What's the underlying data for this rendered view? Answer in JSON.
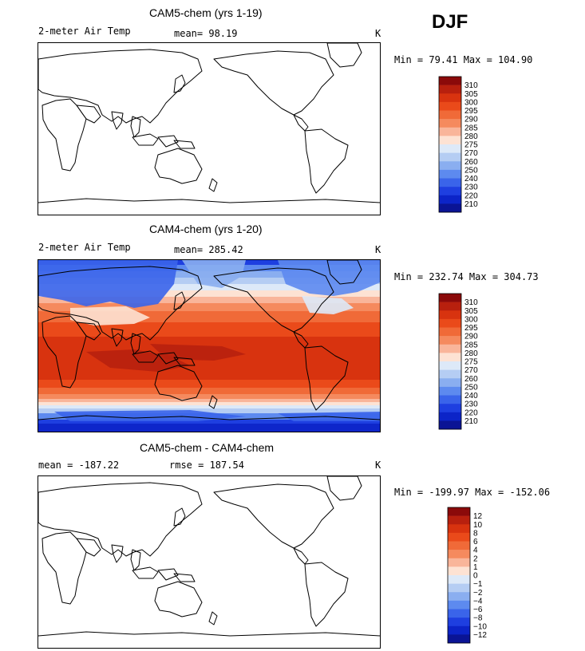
{
  "season": "DJF",
  "panels": [
    {
      "title": "CAM5-chem (yrs 1-19)",
      "left_label": "2-meter Air Temp",
      "center_label": "mean=  98.19",
      "right_label": "K",
      "range_label": "Min =  79.41 Max = 104.90",
      "filled": false
    },
    {
      "title": "CAM4-chem (yrs 1-20)",
      "left_label": "2-meter Air Temp",
      "center_label": "mean= 285.42",
      "right_label": "K",
      "range_label": "Min = 232.74 Max = 304.73",
      "filled": true
    },
    {
      "title": "CAM5-chem - CAM4-chem",
      "left_label": "mean = -187.22",
      "center_label": "rmse = 187.54",
      "right_label": "K",
      "range_label": "Min = -199.97 Max = -152.06",
      "filled": false
    }
  ],
  "colorbars": {
    "temperature": {
      "labels": [
        "310",
        "305",
        "300",
        "295",
        "290",
        "285",
        "280",
        "275",
        "270",
        "260",
        "250",
        "240",
        "230",
        "220",
        "210"
      ],
      "colors": [
        "#8b0a0a",
        "#b8200e",
        "#d8330f",
        "#ea4a1a",
        "#f06a38",
        "#f58a5e",
        "#f9b59a",
        "#fde2d3",
        "#dde9f8",
        "#b5cdf3",
        "#8aaef0",
        "#5d8aef",
        "#3a64ea",
        "#1e3fe0",
        "#0c24c8",
        "#0a1495"
      ]
    },
    "difference": {
      "labels": [
        "12",
        "10",
        "8",
        "6",
        "4",
        "2",
        "1",
        "0",
        "−1",
        "−2",
        "−4",
        "−6",
        "−8",
        "−10",
        "−12"
      ],
      "colors": [
        "#8b0a0a",
        "#b8200e",
        "#d8330f",
        "#ea4a1a",
        "#f06a38",
        "#f58a5e",
        "#f9b59a",
        "#fde2d3",
        "#dde9f8",
        "#b5cdf3",
        "#8aaef0",
        "#5d8aef",
        "#3a64ea",
        "#1e3fe0",
        "#0c24c8",
        "#0a1495"
      ]
    }
  },
  "chart_data": [
    {
      "type": "heatmap",
      "title": "CAM5-chem (yrs 1-19)",
      "variable": "2-meter Air Temp",
      "units": "K",
      "mean": 98.19,
      "min": 79.41,
      "max": 104.9,
      "contour_levels": [
        210,
        220,
        230,
        240,
        250,
        260,
        270,
        275,
        280,
        285,
        290,
        295,
        300,
        305,
        310
      ]
    },
    {
      "type": "heatmap",
      "title": "CAM4-chem (yrs 1-20)",
      "variable": "2-meter Air Temp",
      "units": "K",
      "mean": 285.42,
      "min": 232.74,
      "max": 304.73,
      "contour_levels": [
        210,
        220,
        230,
        240,
        250,
        260,
        270,
        275,
        280,
        285,
        290,
        295,
        300,
        305,
        310
      ]
    },
    {
      "type": "heatmap",
      "title": "CAM5-chem - CAM4-chem",
      "units": "K",
      "mean": -187.22,
      "rmse": 187.54,
      "min": -199.97,
      "max": -152.06,
      "contour_levels": [
        -12,
        -10,
        -8,
        -6,
        -4,
        -2,
        -1,
        0,
        1,
        2,
        4,
        6,
        8,
        10,
        12
      ]
    }
  ]
}
